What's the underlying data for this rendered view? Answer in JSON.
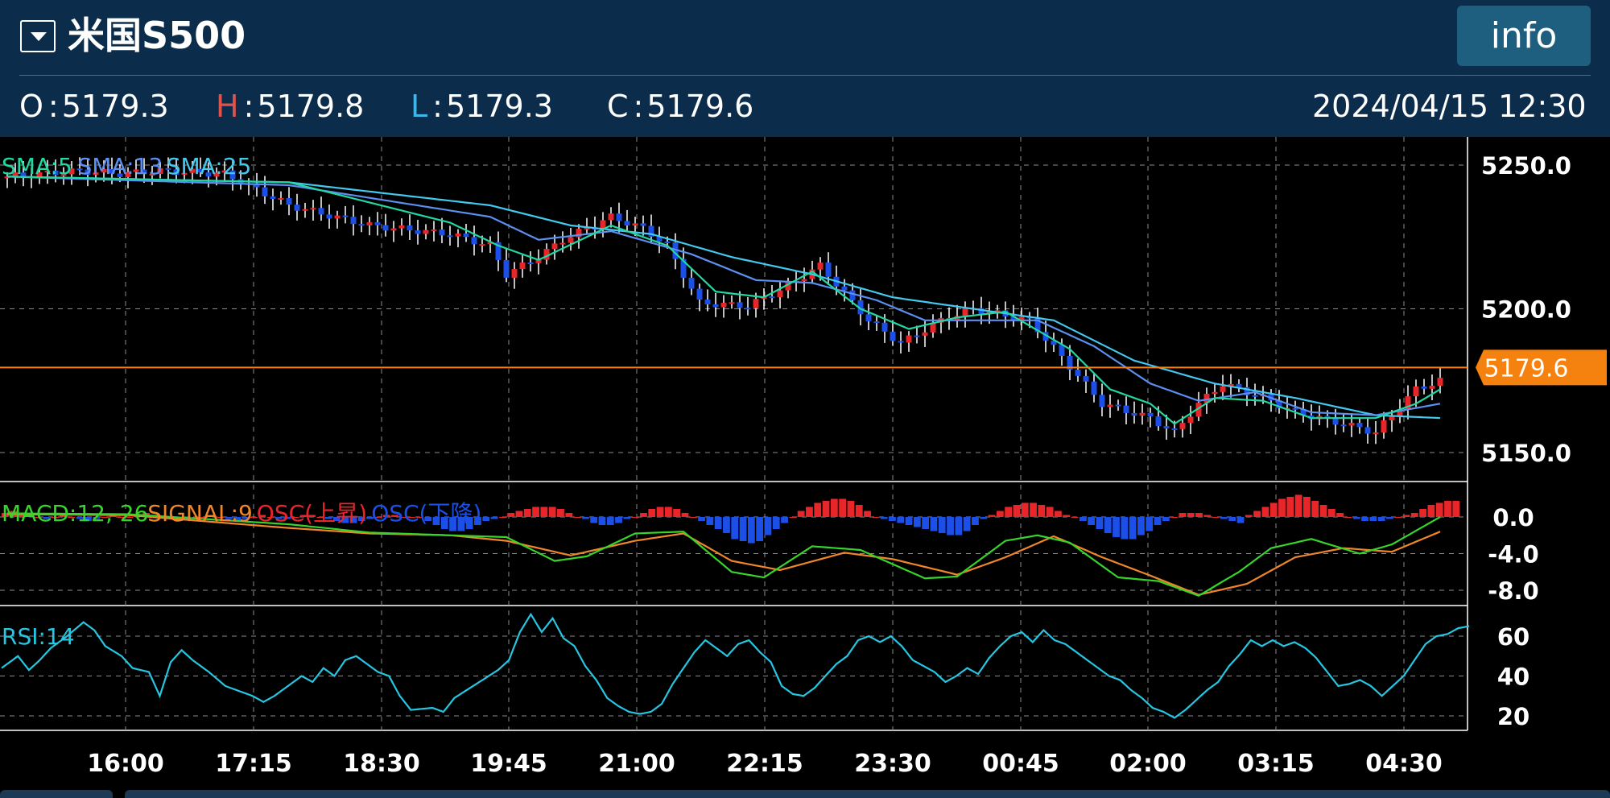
{
  "header": {
    "symbol": "米国S500",
    "info_label": "info",
    "ohlc": {
      "o_key": "O",
      "o_val": "5179.3",
      "h_key": "H",
      "h_val": "5179.8",
      "l_key": "L",
      "l_val": "5179.3",
      "c_key": "C",
      "c_val": "5179.6"
    },
    "datetime": "2024/04/15 12:30"
  },
  "colors": {
    "header_bg": "#0b2c4b",
    "up_candle": "#e8262a",
    "down_candle": "#1b4fe8",
    "sma5": "#22d7a2",
    "sma13": "#5b8ff0",
    "sma25": "#43c8ee",
    "current_price": "#f5820f",
    "macd": "#37d42b",
    "signal": "#f0862a",
    "rsi": "#26c6e3",
    "h_key": "#e0524a",
    "l_key": "#3fb6ea"
  },
  "chart_data": [
    {
      "type": "candlestick",
      "title": "",
      "legend": [
        "SMA:5",
        "SMA:13",
        "SMA:25"
      ],
      "current_price": 5179.6,
      "ylim": [
        5140,
        5260
      ],
      "yticks": [
        5250.0,
        5200.0,
        5150.0
      ],
      "ytick_labels": [
        "5250.0",
        "5200.0",
        "5150.0"
      ],
      "x_ticks": [
        "16:00",
        "17:15",
        "18:30",
        "19:45",
        "21:00",
        "22:15",
        "23:30",
        "00:45",
        "02:00",
        "03:15",
        "04:30"
      ],
      "close_path": [
        [
          0,
          5246
        ],
        [
          9,
          5248
        ],
        [
          14,
          5247
        ],
        [
          19,
          5248
        ],
        [
          27,
          5247
        ],
        [
          35,
          5236
        ],
        [
          45,
          5229
        ],
        [
          55,
          5226
        ],
        [
          60,
          5222
        ],
        [
          62,
          5212
        ],
        [
          66,
          5218
        ],
        [
          69,
          5224
        ],
        [
          75,
          5232
        ],
        [
          79,
          5228
        ],
        [
          82,
          5222
        ],
        [
          86,
          5202
        ],
        [
          92,
          5201
        ],
        [
          97,
          5208
        ],
        [
          101,
          5215
        ],
        [
          107,
          5196
        ],
        [
          111,
          5188
        ],
        [
          116,
          5196
        ],
        [
          120,
          5200
        ],
        [
          127,
          5196
        ],
        [
          132,
          5180
        ],
        [
          136,
          5167
        ],
        [
          142,
          5162
        ],
        [
          145,
          5157
        ],
        [
          148,
          5167
        ],
        [
          151,
          5174
        ],
        [
          157,
          5168
        ],
        [
          160,
          5164
        ],
        [
          166,
          5160
        ],
        [
          170,
          5157
        ],
        [
          172,
          5163
        ],
        [
          175,
          5172
        ],
        [
          178,
          5175
        ]
      ],
      "sma5_path": [
        [
          0,
          5246
        ],
        [
          35,
          5244
        ],
        [
          55,
          5230
        ],
        [
          61,
          5222
        ],
        [
          66,
          5217
        ],
        [
          75,
          5229
        ],
        [
          82,
          5222
        ],
        [
          88,
          5206
        ],
        [
          94,
          5204
        ],
        [
          100,
          5213
        ],
        [
          106,
          5200
        ],
        [
          112,
          5193
        ],
        [
          118,
          5197
        ],
        [
          124,
          5199
        ],
        [
          132,
          5186
        ],
        [
          137,
          5172
        ],
        [
          142,
          5167
        ],
        [
          145,
          5160
        ],
        [
          150,
          5169
        ],
        [
          156,
          5168
        ],
        [
          162,
          5162
        ],
        [
          170,
          5162
        ],
        [
          175,
          5167
        ],
        [
          178,
          5172
        ]
      ],
      "sma13_path": [
        [
          0,
          5246
        ],
        [
          35,
          5243
        ],
        [
          60,
          5232
        ],
        [
          66,
          5224
        ],
        [
          75,
          5227
        ],
        [
          85,
          5219
        ],
        [
          93,
          5210
        ],
        [
          100,
          5209
        ],
        [
          108,
          5203
        ],
        [
          114,
          5196
        ],
        [
          120,
          5196
        ],
        [
          128,
          5196
        ],
        [
          135,
          5187
        ],
        [
          142,
          5174
        ],
        [
          148,
          5168
        ],
        [
          155,
          5171
        ],
        [
          162,
          5164
        ],
        [
          170,
          5163
        ],
        [
          178,
          5167
        ]
      ],
      "sma25_path": [
        [
          0,
          5246
        ],
        [
          35,
          5244
        ],
        [
          60,
          5236
        ],
        [
          70,
          5229
        ],
        [
          80,
          5226
        ],
        [
          90,
          5218
        ],
        [
          100,
          5212
        ],
        [
          110,
          5204
        ],
        [
          120,
          5200
        ],
        [
          130,
          5196
        ],
        [
          140,
          5182
        ],
        [
          150,
          5174
        ],
        [
          160,
          5169
        ],
        [
          170,
          5163
        ],
        [
          178,
          5162
        ]
      ]
    },
    {
      "type": "bar+line",
      "legend": [
        "MACD:12, 26",
        "SIGNAL:9",
        "OSC(上昇)",
        "OSC(下降)"
      ],
      "ylim": [
        -10,
        1.5
      ],
      "yticks": [
        0.0,
        -4.0,
        -8.0
      ],
      "ytick_labels": [
        "0.0",
        "-4.0",
        "-8.0"
      ],
      "macd_path": [
        [
          0,
          0.4
        ],
        [
          15,
          0.3
        ],
        [
          35,
          -0.8
        ],
        [
          45,
          -1.7
        ],
        [
          55,
          -2.0
        ],
        [
          62,
          -2.2
        ],
        [
          68,
          -4.8
        ],
        [
          72,
          -4.3
        ],
        [
          78,
          -1.8
        ],
        [
          84,
          -1.6
        ],
        [
          90,
          -6.0
        ],
        [
          94,
          -6.6
        ],
        [
          100,
          -3.2
        ],
        [
          106,
          -3.6
        ],
        [
          114,
          -6.7
        ],
        [
          118,
          -6.5
        ],
        [
          124,
          -2.6
        ],
        [
          128,
          -2.0
        ],
        [
          132,
          -2.8
        ],
        [
          138,
          -6.6
        ],
        [
          143,
          -7.0
        ],
        [
          148,
          -8.6
        ],
        [
          153,
          -6.0
        ],
        [
          157,
          -3.4
        ],
        [
          162,
          -2.4
        ],
        [
          168,
          -4.0
        ],
        [
          172,
          -3.0
        ],
        [
          178,
          0.0
        ]
      ],
      "signal_path": [
        [
          0,
          0.3
        ],
        [
          15,
          0.2
        ],
        [
          35,
          -1.2
        ],
        [
          45,
          -1.8
        ],
        [
          55,
          -2.0
        ],
        [
          62,
          -2.6
        ],
        [
          70,
          -4.2
        ],
        [
          78,
          -2.6
        ],
        [
          84,
          -1.8
        ],
        [
          90,
          -4.8
        ],
        [
          96,
          -5.8
        ],
        [
          104,
          -3.9
        ],
        [
          110,
          -4.6
        ],
        [
          118,
          -6.3
        ],
        [
          124,
          -4.4
        ],
        [
          130,
          -2.1
        ],
        [
          136,
          -4.4
        ],
        [
          142,
          -6.4
        ],
        [
          148,
          -8.5
        ],
        [
          154,
          -7.3
        ],
        [
          160,
          -4.4
        ],
        [
          166,
          -3.4
        ],
        [
          172,
          -3.8
        ],
        [
          178,
          -1.6
        ]
      ],
      "osc": [
        0.2,
        0.3,
        0.2,
        0.1,
        0.0,
        -0.1,
        0.0,
        0.1,
        0.0,
        -0.1,
        -0.2,
        -0.1,
        0.0,
        0.1,
        0.0,
        0.0,
        0.1,
        0.2,
        0.1,
        0.0,
        -0.1,
        -0.2,
        -0.1,
        0.0,
        0.0,
        0.1,
        0.0,
        -0.1,
        -0.2,
        -0.1,
        0.0,
        0.1,
        0.0,
        -0.1,
        -0.1,
        0.0,
        0.1,
        0.1,
        0.0,
        -0.1,
        -0.2,
        -0.3,
        -0.3,
        -0.2,
        -0.1,
        0.0,
        0.1,
        0.1,
        0.0,
        0.0,
        0.0,
        -0.2,
        -0.4,
        -0.6,
        -0.7,
        -0.7,
        -0.6,
        -0.4,
        -0.2,
        -0.1,
        0.0,
        0.2,
        0.3,
        0.4,
        0.5,
        0.5,
        0.5,
        0.4,
        0.2,
        0.0,
        -0.1,
        -0.3,
        -0.4,
        -0.4,
        -0.3,
        -0.1,
        0.0,
        0.2,
        0.4,
        0.5,
        0.5,
        0.4,
        0.2,
        0.0,
        -0.2,
        -0.4,
        -0.6,
        -0.8,
        -1.1,
        -1.2,
        -1.3,
        -1.2,
        -0.9,
        -0.6,
        -0.3,
        0.0,
        0.3,
        0.5,
        0.7,
        0.8,
        0.9,
        0.9,
        0.8,
        0.6,
        0.3,
        0.0,
        -0.1,
        -0.2,
        -0.3,
        -0.4,
        -0.5,
        -0.6,
        -0.7,
        -0.8,
        -0.9,
        -0.9,
        -0.7,
        -0.4,
        -0.1,
        0.1,
        0.3,
        0.5,
        0.6,
        0.7,
        0.7,
        0.6,
        0.5,
        0.3,
        0.1,
        0.0,
        -0.2,
        -0.4,
        -0.6,
        -0.8,
        -1.0,
        -1.1,
        -1.1,
        -0.9,
        -0.7,
        -0.4,
        -0.2,
        0.0,
        0.2,
        0.2,
        0.2,
        0.1,
        0.0,
        -0.1,
        -0.2,
        -0.3,
        0.1,
        0.3,
        0.5,
        0.7,
        0.9,
        1.0,
        1.1,
        1.0,
        0.8,
        0.6,
        0.4,
        0.2,
        0.0,
        -0.1,
        -0.2,
        -0.2,
        -0.2,
        -0.1,
        0.0,
        0.1,
        0.2,
        0.4,
        0.6,
        0.7,
        0.8,
        0.8
      ]
    },
    {
      "type": "line",
      "legend": [
        "RSI:14"
      ],
      "ylim": [
        13,
        75
      ],
      "yticks": [
        60,
        40,
        20
      ],
      "ytick_labels": [
        "60",
        "40",
        "20"
      ],
      "rsi_path": [
        [
          0,
          44
        ],
        [
          3,
          50
        ],
        [
          5,
          43
        ],
        [
          7,
          48
        ],
        [
          9,
          54
        ],
        [
          12,
          60
        ],
        [
          15,
          67
        ],
        [
          17,
          63
        ],
        [
          19,
          55
        ],
        [
          22,
          50
        ],
        [
          24,
          44
        ],
        [
          27,
          42
        ],
        [
          29,
          30
        ],
        [
          31,
          47
        ],
        [
          33,
          53
        ],
        [
          35,
          48
        ],
        [
          38,
          42
        ],
        [
          41,
          35
        ],
        [
          44,
          32
        ],
        [
          46,
          30
        ],
        [
          48,
          27
        ],
        [
          50,
          30
        ],
        [
          52,
          34
        ],
        [
          55,
          40
        ],
        [
          57,
          37
        ],
        [
          59,
          44
        ],
        [
          61,
          40
        ],
        [
          63,
          48
        ],
        [
          65,
          50
        ],
        [
          67,
          46
        ],
        [
          69,
          42
        ],
        [
          71,
          40
        ],
        [
          73,
          30
        ],
        [
          75,
          23
        ],
        [
          79,
          24
        ],
        [
          81,
          22
        ],
        [
          83,
          29
        ],
        [
          87,
          36
        ],
        [
          91,
          43
        ],
        [
          93,
          48
        ],
        [
          95,
          62
        ],
        [
          97,
          71
        ],
        [
          99,
          62
        ],
        [
          101,
          69
        ],
        [
          103,
          59
        ],
        [
          105,
          55
        ],
        [
          107,
          45
        ],
        [
          109,
          38
        ],
        [
          111,
          29
        ],
        [
          113,
          25
        ],
        [
          115,
          22
        ],
        [
          117,
          21
        ],
        [
          119,
          22
        ],
        [
          121,
          26
        ],
        [
          123,
          36
        ],
        [
          125,
          44
        ],
        [
          127,
          52
        ],
        [
          129,
          58
        ],
        [
          131,
          54
        ],
        [
          133,
          50
        ],
        [
          135,
          56
        ],
        [
          137,
          58
        ],
        [
          139,
          52
        ],
        [
          141,
          47
        ],
        [
          143,
          35
        ],
        [
          145,
          31
        ],
        [
          147,
          30
        ],
        [
          149,
          34
        ],
        [
          151,
          40
        ],
        [
          153,
          46
        ],
        [
          155,
          50
        ],
        [
          157,
          58
        ],
        [
          159,
          60
        ],
        [
          161,
          57
        ],
        [
          163,
          60
        ],
        [
          165,
          55
        ],
        [
          167,
          48
        ],
        [
          169,
          45
        ],
        [
          171,
          42
        ],
        [
          173,
          37
        ],
        [
          175,
          40
        ],
        [
          177,
          44
        ],
        [
          179,
          41
        ],
        [
          181,
          49
        ],
        [
          183,
          55
        ],
        [
          185,
          60
        ],
        [
          187,
          62
        ],
        [
          189,
          57
        ],
        [
          191,
          63
        ],
        [
          193,
          58
        ],
        [
          195,
          56
        ],
        [
          197,
          52
        ],
        [
          199,
          48
        ],
        [
          201,
          44
        ],
        [
          203,
          40
        ],
        [
          205,
          38
        ],
        [
          207,
          33
        ],
        [
          209,
          29
        ],
        [
          211,
          24
        ],
        [
          213,
          22
        ],
        [
          215,
          19
        ],
        [
          217,
          23
        ],
        [
          219,
          28
        ],
        [
          221,
          33
        ],
        [
          223,
          37
        ],
        [
          225,
          45
        ],
        [
          227,
          51
        ],
        [
          229,
          58
        ],
        [
          231,
          55
        ],
        [
          233,
          58
        ],
        [
          235,
          55
        ],
        [
          237,
          57
        ],
        [
          239,
          54
        ],
        [
          241,
          49
        ],
        [
          243,
          42
        ],
        [
          245,
          35
        ],
        [
          247,
          36
        ],
        [
          249,
          38
        ],
        [
          251,
          35
        ],
        [
          253,
          30
        ],
        [
          255,
          35
        ],
        [
          257,
          40
        ],
        [
          259,
          48
        ],
        [
          261,
          56
        ],
        [
          263,
          60
        ],
        [
          265,
          61
        ],
        [
          267,
          64
        ],
        [
          269,
          65
        ]
      ]
    }
  ]
}
